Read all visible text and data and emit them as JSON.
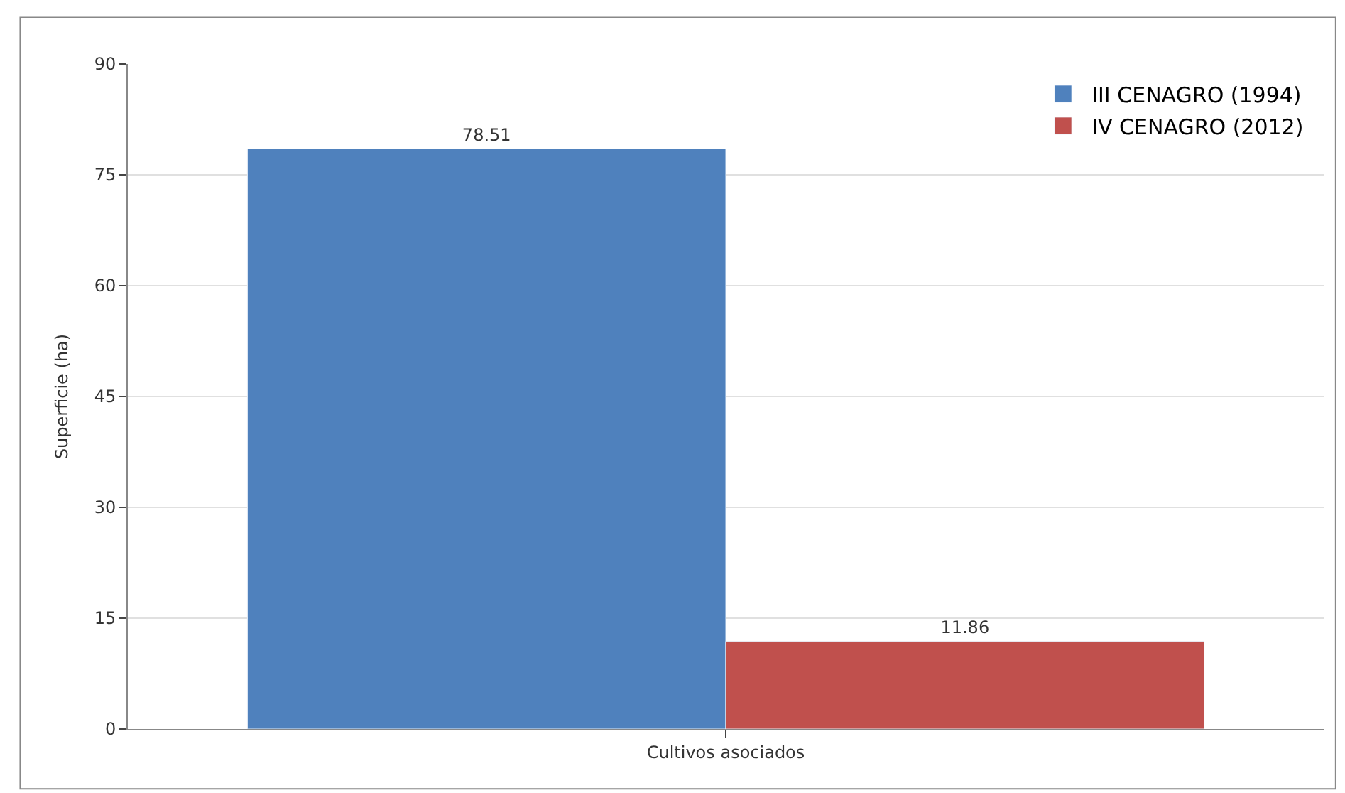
{
  "chart_data": {
    "type": "bar",
    "ylabel": "Superficie (ha)",
    "categories": [
      "Cultivos asociados"
    ],
    "series": [
      {
        "name": "III CENAGRO (1994)",
        "color": "#4f81bd",
        "values": [
          78.51
        ]
      },
      {
        "name": "IV CENAGRO (2012)",
        "color": "#c0504d",
        "values": [
          11.86
        ]
      }
    ],
    "ylim": [
      0,
      90
    ],
    "yticks": [
      0,
      15,
      30,
      45,
      60,
      75,
      90
    ],
    "grid": "y",
    "legend": "top right",
    "data_labels": true
  }
}
